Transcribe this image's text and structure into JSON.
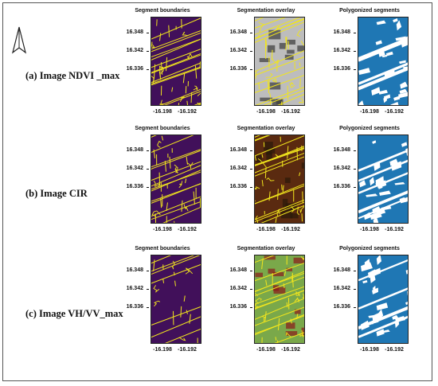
{
  "rows": [
    {
      "label": "(a) Image NDVI _max",
      "panels": [
        {
          "title": "Segment boundaries",
          "kind": "boundaries",
          "bg": "#41105a"
        },
        {
          "title": "Segmentation overlay",
          "kind": "overlay",
          "bg": "#bdbdbd"
        },
        {
          "title": "Polygonized segments",
          "kind": "polygons",
          "bg": "#1f77b4"
        }
      ]
    },
    {
      "label": "(b) Image CIR",
      "panels": [
        {
          "title": "Segment boundaries",
          "kind": "boundaries",
          "bg": "#41105a"
        },
        {
          "title": "Segmentation overlay",
          "kind": "overlay",
          "bg": "#5a2a10"
        },
        {
          "title": "Polygonized segments",
          "kind": "polygons",
          "bg": "#1f77b4"
        }
      ]
    },
    {
      "label": "(c) Image VH/VV_max",
      "panels": [
        {
          "title": "Segment boundaries",
          "kind": "boundaries",
          "bg": "#41105a"
        },
        {
          "title": "Segmentation overlay",
          "kind": "overlay",
          "bg": "#7aa84a"
        },
        {
          "title": "Polygonized segments",
          "kind": "polygons",
          "bg": "#1f77b4"
        }
      ]
    }
  ],
  "y_ticks": [
    "16.348",
    "16.342",
    "16.336"
  ],
  "x_ticks": [
    "-16.198",
    "-16.192"
  ],
  "colors": {
    "boundary": "#f1e51d",
    "background_dark": "#41105a",
    "polygon_fill": "#1f77b4"
  },
  "north_arrow_icon": "north-arrow-icon"
}
